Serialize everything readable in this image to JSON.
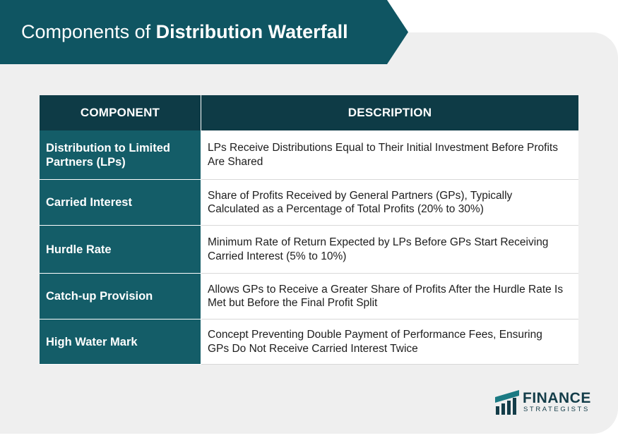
{
  "banner": {
    "title_regular": "Components of ",
    "title_bold": "Distribution Waterfall"
  },
  "table": {
    "headers": [
      "COMPONENT",
      "DESCRIPTION"
    ],
    "rows": [
      {
        "component": "Distribution to Limited Partners (LPs)",
        "description": "LPs Receive Distributions Equal to Their Initial Investment Before Profits Are Shared"
      },
      {
        "component": "Carried Interest",
        "description": "Share of Profits Received by General Partners (GPs), Typically Calculated as a Percentage of Total Profits (20% to 30%)"
      },
      {
        "component": "Hurdle Rate",
        "description": "Minimum Rate of Return Expected by LPs Before GPs Start Receiving Carried Interest (5% to 10%)"
      },
      {
        "component": "Catch-up Provision",
        "description": "Allows GPs to Receive a Greater Share of Profits After the Hurdle Rate Is Met but Before the Final Profit Split"
      },
      {
        "component": "High Water Mark",
        "description": "Concept Preventing Double Payment of Performance Fees, Ensuring GPs Do Not Receive Carried Interest Twice"
      }
    ]
  },
  "logo": {
    "line1": "FINANCE",
    "line2": "STRATEGISTS",
    "icon": "finance-strategists-logo-icon"
  },
  "colors": {
    "banner": "#0f5562",
    "header": "#0e3b46",
    "component_cell": "#145d68",
    "card_background": "#efefef"
  }
}
